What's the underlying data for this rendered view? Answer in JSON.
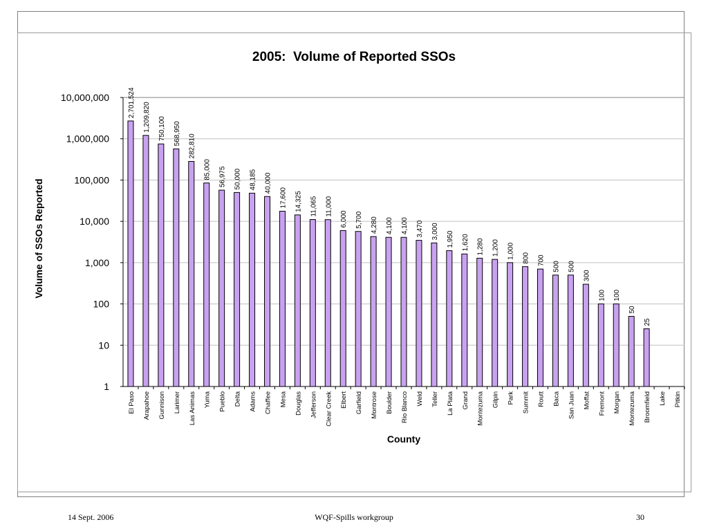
{
  "footer": {
    "date": "14 Sept. 2006",
    "title": "WQF-Spills workgroup",
    "page": "30"
  },
  "colors": {
    "bar_fill": "#c8a2f0",
    "bar_stroke": "#000000",
    "grid": "#c0c0c0"
  },
  "chart_data": {
    "type": "bar",
    "title": "2005:  Volume of Reported SSOs",
    "xlabel": "County",
    "ylabel": "Volume of SSOs Reported",
    "yscale": "log",
    "ylim": [
      1,
      10000000
    ],
    "yticks": [
      1,
      10,
      100,
      1000,
      10000,
      100000,
      1000000,
      10000000
    ],
    "ytick_labels": [
      "1",
      "10",
      "100",
      "1,000",
      "10,000",
      "100,000",
      "1,000,000",
      "10,000,000"
    ],
    "grid": true,
    "categories": [
      "El Paso",
      "Arapahoe",
      "Gunnison",
      "Larimer",
      "Las Animas",
      "Yuma",
      "Pueblo",
      "Delta",
      "Adams",
      "Chaffee",
      "Mesa",
      "Douglas",
      "Jefferson",
      "Clear Creek",
      "Elbert",
      "Garfield",
      "Montrose",
      "Boulder",
      "Rio Blanco",
      "Weld",
      "Teller",
      "La Plata",
      "Grand",
      "Montezuma",
      "Gilpin",
      "Park",
      "Summit",
      "Routt",
      "Baca",
      "San Juan",
      "Moffat",
      "Fremont",
      "Morgan",
      "Montezuma",
      "Broomfield",
      "Lake",
      "Pitkin"
    ],
    "values": [
      2701524,
      1209820,
      750100,
      568950,
      282810,
      85000,
      56975,
      50000,
      48185,
      40000,
      17600,
      14325,
      11065,
      11000,
      6000,
      5700,
      4280,
      4100,
      4100,
      3470,
      3000,
      1950,
      1620,
      1280,
      1200,
      1000,
      800,
      700,
      500,
      500,
      300,
      100,
      100,
      50,
      25,
      null,
      null
    ],
    "data_labels": [
      "2,701,524",
      "1,209,820",
      "750,100",
      "568,950",
      "282,810",
      "85,000",
      "56,975",
      "50,000",
      "48,185",
      "40,000",
      "17,600",
      "14,325",
      "11,065",
      "11,000",
      "6,000",
      "5,700",
      "4,280",
      "4,100",
      "4,100",
      "3,470",
      "3,000",
      "1,950",
      "1,620",
      "1,280",
      "1,200",
      "1,000",
      "800",
      "700",
      "500",
      "500",
      "300",
      "100",
      "100",
      "50",
      "25",
      "",
      ""
    ]
  }
}
